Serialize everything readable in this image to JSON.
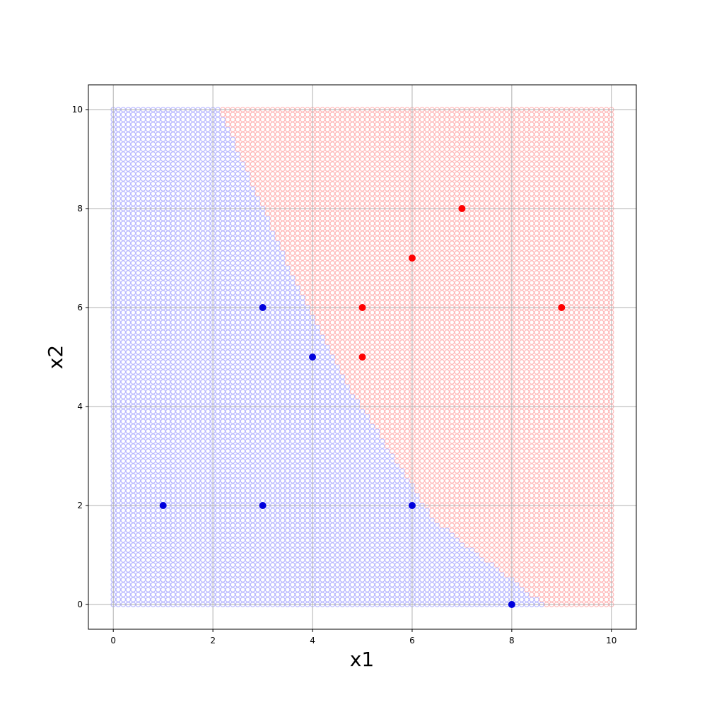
{
  "chart_data": {
    "type": "scatter",
    "xlabel": "x1",
    "ylabel": "x2",
    "xlim": [
      -0.5,
      10.5
    ],
    "ylim": [
      -0.5,
      10.5
    ],
    "xticks": [
      0,
      2,
      4,
      6,
      8,
      10
    ],
    "yticks": [
      0,
      2,
      4,
      6,
      8,
      10
    ],
    "grid": true,
    "decision_region": {
      "grid_range": [
        0,
        10
      ],
      "grid_step": 0.1,
      "boundary_points": [
        [
          8.65,
          0
        ],
        [
          6.45,
          1.7
        ],
        [
          4.8,
          4.3
        ],
        [
          3.45,
          7.0
        ],
        [
          2.15,
          10
        ]
      ],
      "left_class_color": "#8888ff",
      "right_class_color": "#ff8888"
    },
    "series": [
      {
        "color": "#0000dd",
        "points": [
          [
            1,
            2
          ],
          [
            3,
            2
          ],
          [
            6,
            2
          ],
          [
            3,
            6
          ],
          [
            4,
            5
          ],
          [
            8,
            0
          ]
        ]
      },
      {
        "color": "#ff0000",
        "points": [
          [
            5,
            5
          ],
          [
            5,
            6
          ],
          [
            6,
            7
          ],
          [
            7,
            8
          ],
          [
            9,
            6
          ]
        ]
      }
    ]
  }
}
